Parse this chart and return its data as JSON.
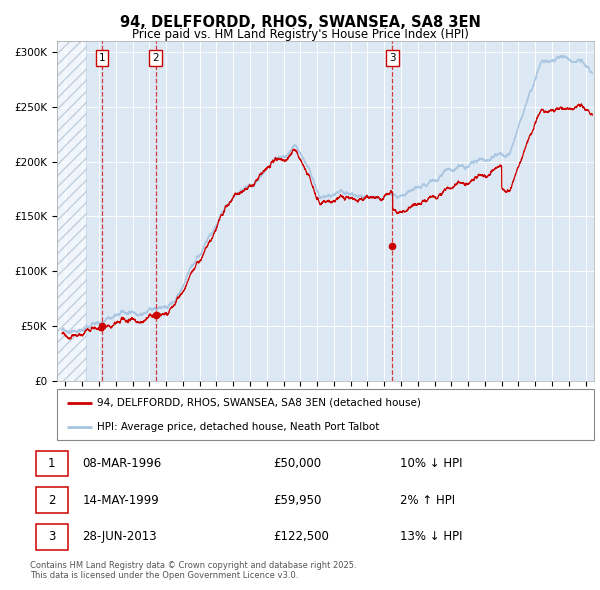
{
  "title": "94, DELFFORDD, RHOS, SWANSEA, SA8 3EN",
  "subtitle": "Price paid vs. HM Land Registry's House Price Index (HPI)",
  "legend_line1": "94, DELFFORDD, RHOS, SWANSEA, SA8 3EN (detached house)",
  "legend_line2": "HPI: Average price, detached house, Neath Port Talbot",
  "transactions": [
    {
      "num": 1,
      "date": "08-MAR-1996",
      "price": 50000,
      "pct": "10%",
      "dir": "↓",
      "date_decimal": 1996.19
    },
    {
      "num": 2,
      "date": "14-MAY-1999",
      "price": 59950,
      "pct": "2%",
      "dir": "↑",
      "date_decimal": 1999.37
    },
    {
      "num": 3,
      "date": "28-JUN-2013",
      "price": 122500,
      "pct": "13%",
      "dir": "↓",
      "date_decimal": 2013.49
    }
  ],
  "footer": "Contains HM Land Registry data © Crown copyright and database right 2025.\nThis data is licensed under the Open Government Licence v3.0.",
  "hpi_color": "#a8c4e0",
  "price_color": "#cc0000",
  "background_color": "#dce9f5",
  "ylim": [
    0,
    310000
  ],
  "yticks": [
    0,
    50000,
    100000,
    150000,
    200000,
    250000,
    300000
  ],
  "xlim_start": 1993.5,
  "xlim_end": 2025.5,
  "hatch_end": 1995.2
}
